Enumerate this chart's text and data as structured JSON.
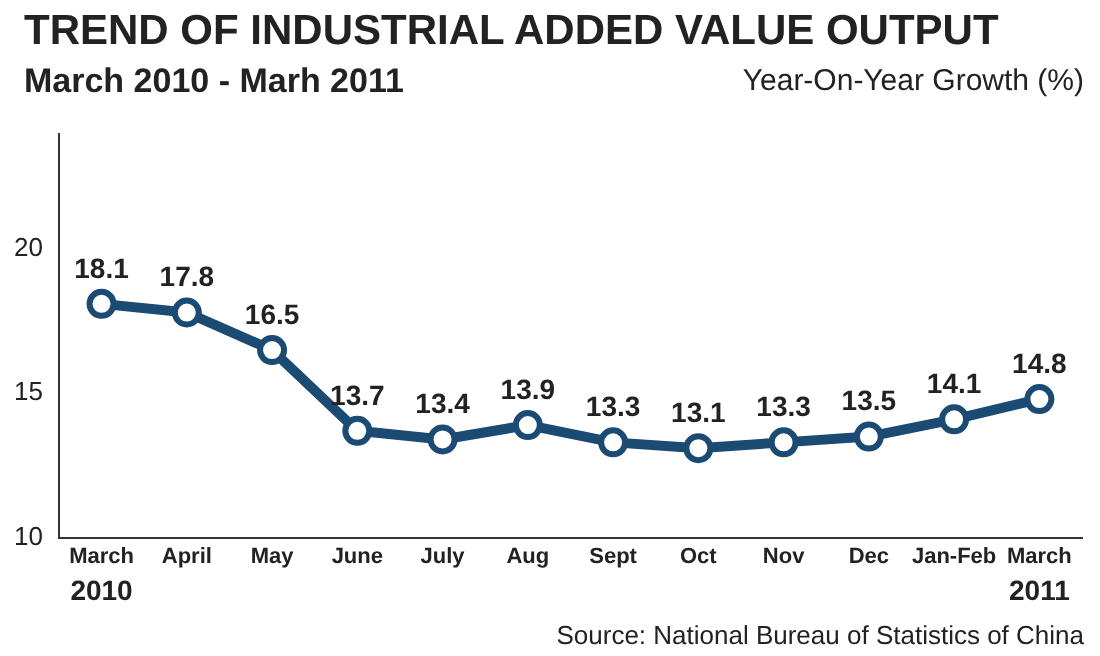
{
  "chart_data": {
    "type": "line",
    "title": "TREND OF INDUSTRIAL ADDED VALUE OUTPUT",
    "subtitle": "March 2010 - Marh 2011",
    "ylabel": "Year-On-Year Growth (%)",
    "categories": [
      "March",
      "April",
      "May",
      "June",
      "July",
      "Aug",
      "Sept",
      "Oct",
      "Nov",
      "Dec",
      "Jan-Feb",
      "March"
    ],
    "series": [
      {
        "color": "#1b4a72",
        "values": [
          18.1,
          17.8,
          16.5,
          13.7,
          13.4,
          13.9,
          13.3,
          13.1,
          13.3,
          13.5,
          14.1,
          14.8
        ]
      }
    ],
    "ylim": [
      10,
      24
    ],
    "yticks": [
      10,
      15,
      20
    ],
    "grid": false,
    "legend": false,
    "marker": "circle",
    "line_style": "solid",
    "data_labels": true,
    "annotations": [
      "2010",
      "2011",
      "Source: National Bureau of Statistics of China"
    ]
  }
}
